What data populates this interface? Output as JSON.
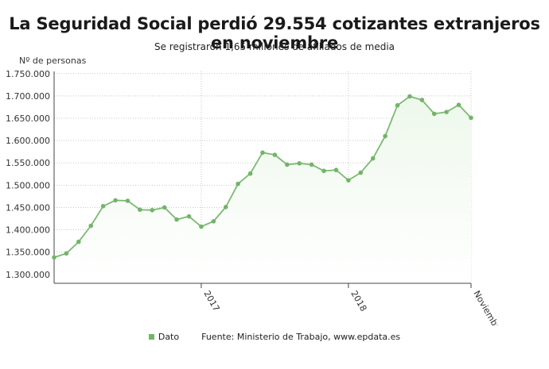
{
  "header": {
    "title": "La Seguridad Social perdió 29.554 cotizantes extranjeros en noviembre",
    "subtitle": "Se registraron 1,65 millones de afiliados de media"
  },
  "colors": {
    "line": "#7cba73",
    "marker": "#74b46a",
    "area": "#eef8ec",
    "grid": "#c8c8c8",
    "axis": "#444444"
  },
  "chart_data": {
    "type": "area",
    "title": "La Seguridad Social perdió 29.554 cotizantes extranjeros en noviembre",
    "subtitle": "Se registraron 1,65 millones de afiliados de media",
    "ylabel": "Nº de personas",
    "xlabel": "",
    "ylim": [
      1280000,
      1755000
    ],
    "yticks": [
      1300000,
      1350000,
      1400000,
      1450000,
      1500000,
      1550000,
      1600000,
      1650000,
      1700000,
      1750000
    ],
    "ytick_labels": [
      "1.300.000",
      "1.350.000",
      "1.400.000",
      "1.450.000",
      "1.500.000",
      "1.550.000",
      "1.600.000",
      "1.650.000",
      "1.700.000",
      "1.750.000"
    ],
    "x": [
      "2016-01",
      "2016-02",
      "2016-03",
      "2016-04",
      "2016-05",
      "2016-06",
      "2016-07",
      "2016-08",
      "2016-09",
      "2016-10",
      "2016-11",
      "2016-12",
      "2017-01",
      "2017-02",
      "2017-03",
      "2017-04",
      "2017-05",
      "2017-06",
      "2017-07",
      "2017-08",
      "2017-09",
      "2017-10",
      "2017-11",
      "2017-12",
      "2018-01",
      "2018-02",
      "2018-03",
      "2018-04",
      "2018-05",
      "2018-06",
      "2018-07",
      "2018-08",
      "2018-09",
      "2018-10",
      "2018-11"
    ],
    "xticks": [
      {
        "x": "2017-01",
        "label": "2017"
      },
      {
        "x": "2018-01",
        "label": "2018"
      },
      {
        "x": "2018-11",
        "label": "Noviembre"
      }
    ],
    "grid": true,
    "legend_position": "bottom",
    "series": [
      {
        "name": "Dato",
        "values": [
          1338000,
          1347000,
          1373000,
          1409000,
          1453000,
          1466000,
          1465000,
          1445000,
          1444000,
          1450000,
          1423000,
          1430000,
          1407000,
          1419000,
          1451000,
          1503000,
          1526000,
          1573000,
          1568000,
          1546000,
          1549000,
          1546000,
          1532000,
          1534000,
          1511000,
          1528000,
          1560000,
          1610000,
          1679000,
          1699000,
          1691000,
          1660000,
          1664000,
          1680000,
          1651000
        ]
      }
    ]
  },
  "footer": {
    "legend_label": "Dato",
    "source": "Fuente: Ministerio de Trabajo, www.epdata.es"
  }
}
